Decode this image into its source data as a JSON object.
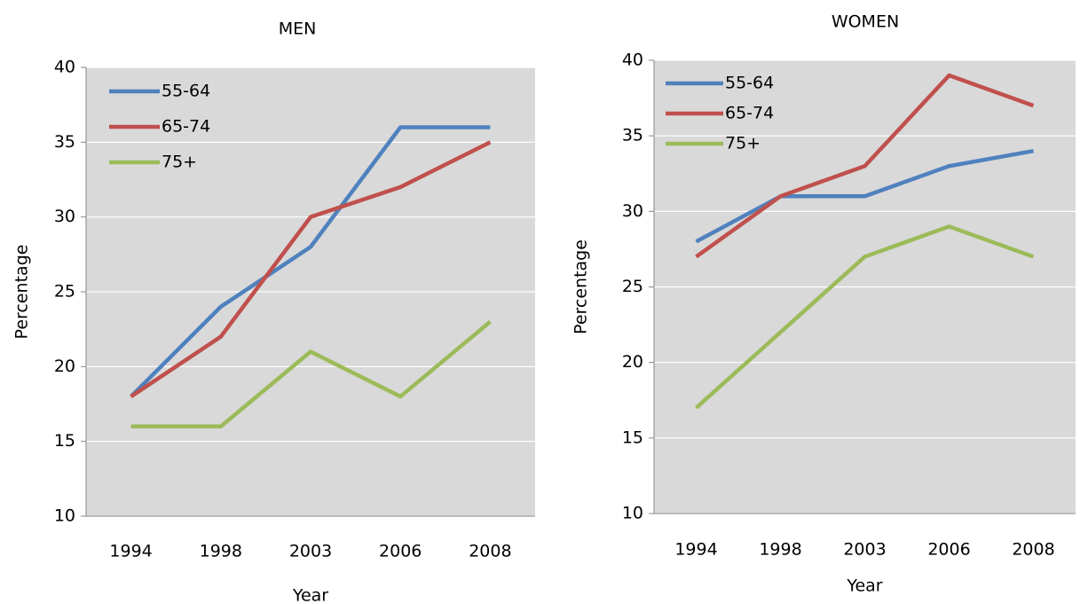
{
  "chart_data": [
    {
      "type": "line",
      "title": "MEN",
      "xlabel": "Year",
      "ylabel": "Percentage",
      "categories": [
        "1994",
        "1998",
        "2003",
        "2006",
        "2008"
      ],
      "series": [
        {
          "name": "55-64",
          "color": "#4f81bd",
          "values": [
            18,
            24,
            28,
            36,
            36
          ]
        },
        {
          "name": "65-74",
          "color": "#c0504d",
          "values": [
            18,
            22,
            30,
            32,
            35
          ]
        },
        {
          "name": "75+",
          "color": "#9bbb59",
          "values": [
            16,
            16,
            21,
            18,
            23
          ]
        }
      ],
      "ylim": [
        10,
        40
      ],
      "yticks": [
        10,
        15,
        20,
        25,
        30,
        35,
        40
      ],
      "grid": true,
      "legend": "upper left"
    },
    {
      "type": "line",
      "title": "WOMEN",
      "xlabel": "Year",
      "ylabel": "Percentage",
      "categories": [
        "1994",
        "1998",
        "2003",
        "2006",
        "2008"
      ],
      "series": [
        {
          "name": "55-64",
          "color": "#4f81bd",
          "values": [
            28,
            31,
            31,
            33,
            34
          ]
        },
        {
          "name": "65-74",
          "color": "#c0504d",
          "values": [
            27,
            31,
            33,
            39,
            37
          ]
        },
        {
          "name": "75+",
          "color": "#9bbb59",
          "values": [
            17,
            22,
            27,
            29,
            27
          ]
        }
      ],
      "ylim": [
        10,
        40
      ],
      "yticks": [
        10,
        15,
        20,
        25,
        30,
        35,
        40
      ],
      "grid": true,
      "legend": "upper left"
    }
  ]
}
